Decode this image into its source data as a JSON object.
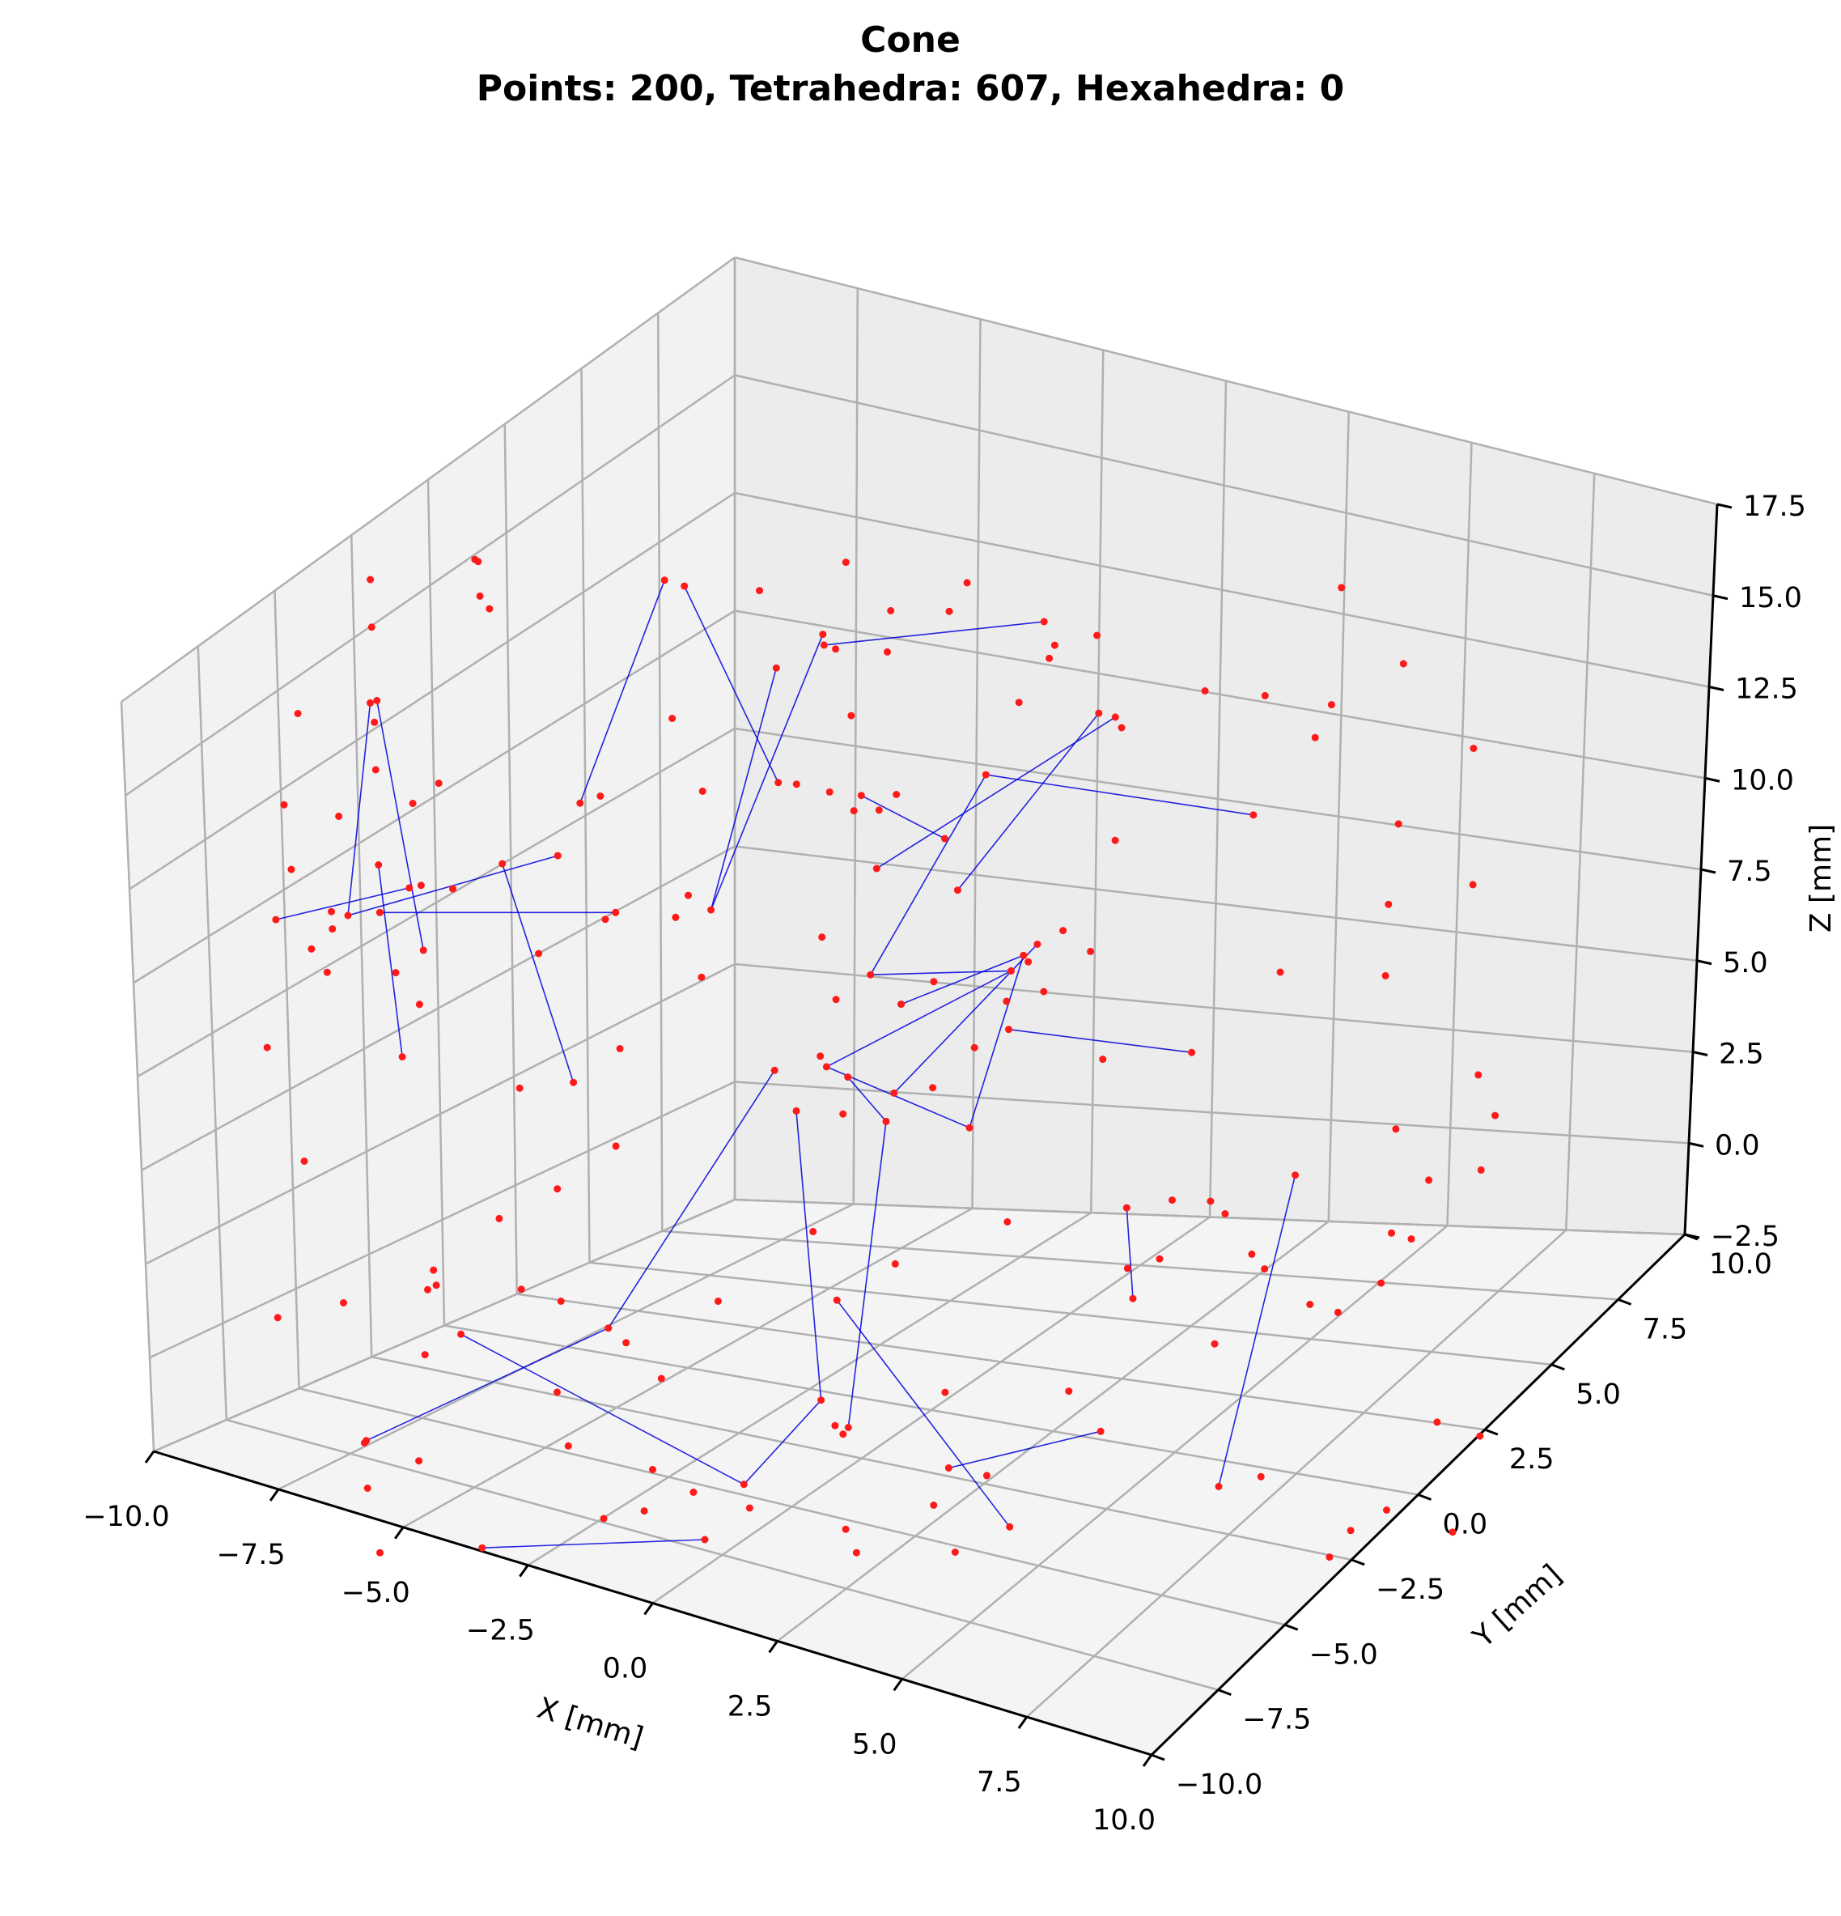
{
  "chart_data": {
    "type": "scatter",
    "title": "Cone",
    "subtitle": "Points: 200, Tetrahedra: 607, Hexahedra: 0",
    "xlabel": "X [mm]",
    "ylabel": "Y [mm]",
    "zlabel": "Z [mm]",
    "xlim": [
      -10,
      10
    ],
    "ylim": [
      -10,
      10
    ],
    "zlim": [
      -2.5,
      17.5
    ],
    "x_ticks": [
      "−10.0",
      "−7.5",
      "−5.0",
      "−2.5",
      "0.0",
      "2.5",
      "5.0",
      "7.5",
      "10.0"
    ],
    "y_ticks": [
      "−10.0",
      "−7.5",
      "−5.0",
      "−2.5",
      "0.0",
      "2.5",
      "5.0",
      "7.5",
      "10.0"
    ],
    "z_ticks": [
      "−2.5",
      "0.0",
      "2.5",
      "5.0",
      "7.5",
      "10.0",
      "12.5",
      "15.0",
      "17.5"
    ],
    "grid": true,
    "point_color": "#ff1a1a",
    "edge_color": "#0000dd",
    "background_pane_color": "#f0f0f0"
  }
}
